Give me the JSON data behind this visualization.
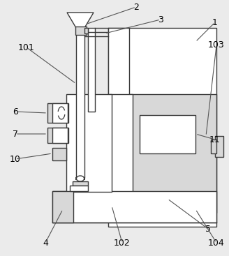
{
  "bg_color": "#ebebeb",
  "line_color": "#3a3a3a",
  "line_width": 1.0,
  "fill_white": "#ffffff",
  "fill_light": "#d8d8d8",
  "fill_mid": "#c8c8c8"
}
